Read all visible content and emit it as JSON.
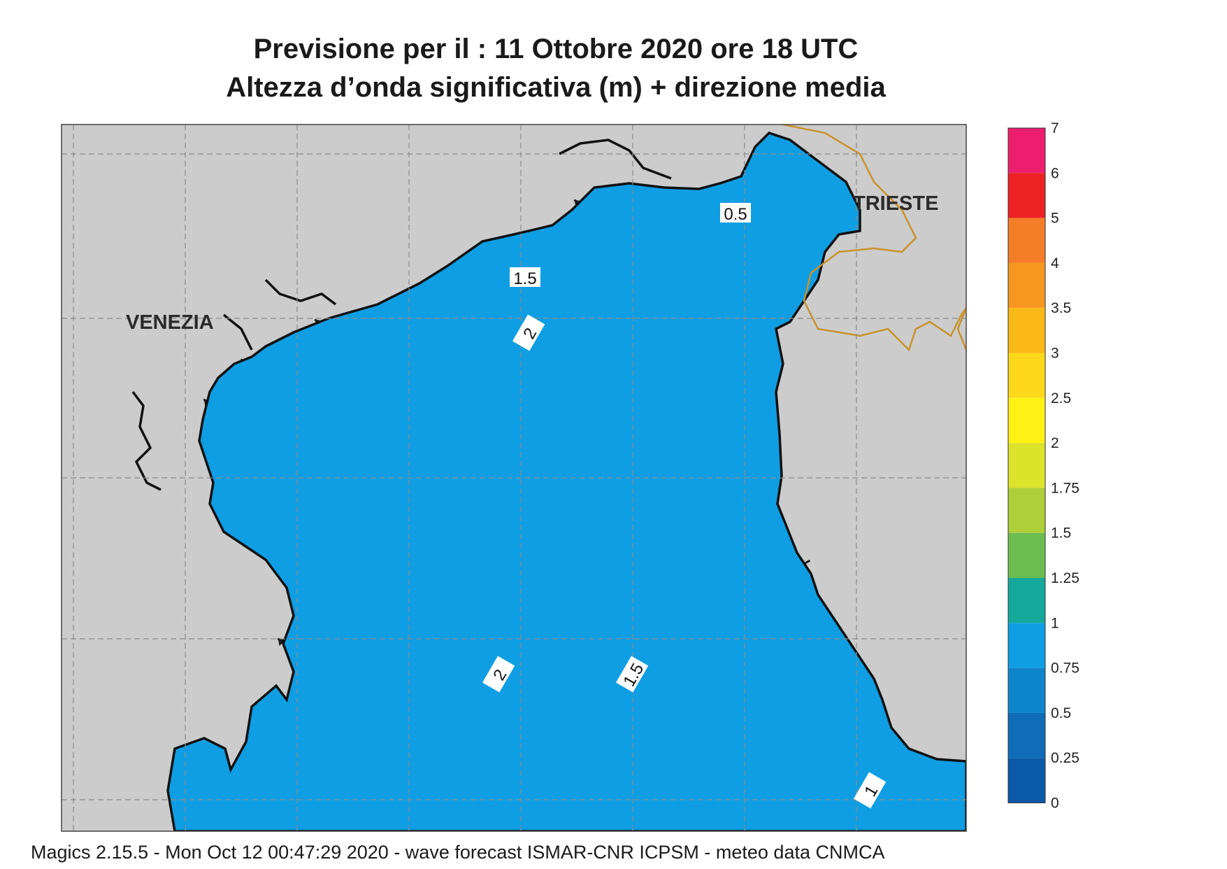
{
  "header": {
    "title_line1": "Previsione per il  :  11  Ottobre  2020   ore 18 UTC",
    "title_line2": "Altezza d’onda significativa (m) + direzione media"
  },
  "map": {
    "cities": [
      {
        "name": "VENEZIA"
      },
      {
        "name": "TRIESTE"
      }
    ],
    "contour_labels": [
      "0.5",
      "1.5",
      "2",
      "2",
      "1.5",
      "1"
    ],
    "colors": {
      "land": "#cccccc",
      "coast": "#111111",
      "border": "#c8922a",
      "arrow": "#1a1a1a"
    }
  },
  "colorbar": {
    "levels": [
      "7",
      "6",
      "5",
      "4",
      "3.5",
      "3",
      "2.5",
      "2",
      "1.75",
      "1.5",
      "1.25",
      "1",
      "0.75",
      "0.5",
      "0.25",
      "0"
    ],
    "colors": [
      "#ee1e6e",
      "#ec2124",
      "#f47e27",
      "#f7971f",
      "#fbb917",
      "#fdd81a",
      "#fff214",
      "#dde32a",
      "#aecf3a",
      "#6cbd4f",
      "#14a99b",
      "#0f9ee3",
      "#0e84cd",
      "#0e6cb8",
      "#0a5aa8"
    ]
  },
  "footer": {
    "text": "Magics 2.15.5 - Mon Oct 12 00:47:29 2020 - wave forecast  ISMAR-CNR  ICPSM - meteo data   CNMCA"
  }
}
